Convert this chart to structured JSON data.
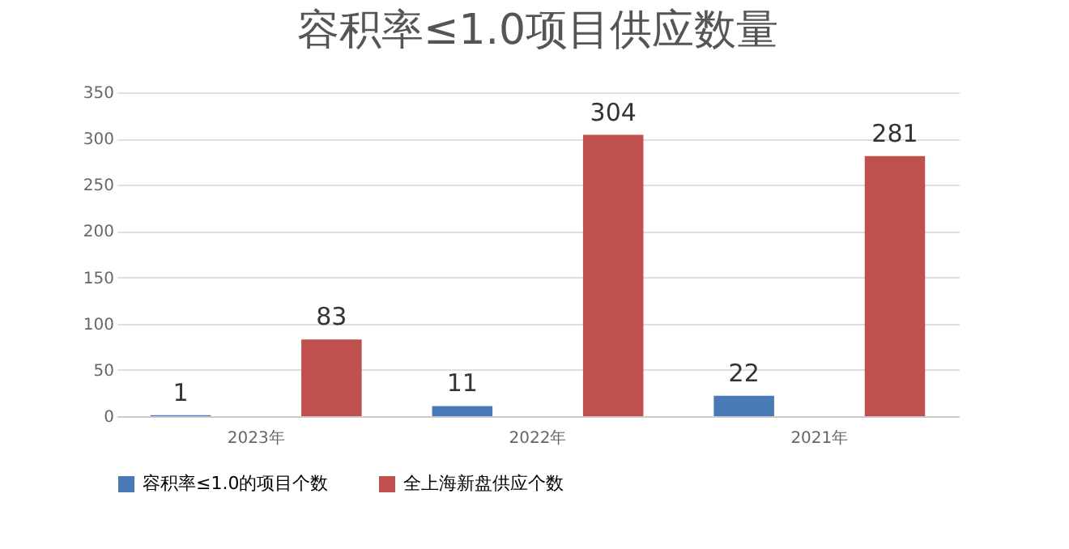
{
  "chart_data": {
    "type": "bar",
    "title": "容积率≤1.0项目供应数量",
    "categories": [
      "2023年",
      "2022年",
      "2021年"
    ],
    "series": [
      {
        "name": "容积率≤1.0的项目个数",
        "color": "#4a7ab5",
        "values": [
          1,
          11,
          22
        ]
      },
      {
        "name": "全上海新盘供应个数",
        "color": "#c0504d",
        "values": [
          83,
          304,
          281
        ]
      }
    ],
    "ylim": [
      0,
      350
    ],
    "yticks": [
      0,
      50,
      100,
      150,
      200,
      250,
      300,
      350
    ],
    "grid": "y",
    "data_labels": true,
    "legend": "bottom"
  }
}
